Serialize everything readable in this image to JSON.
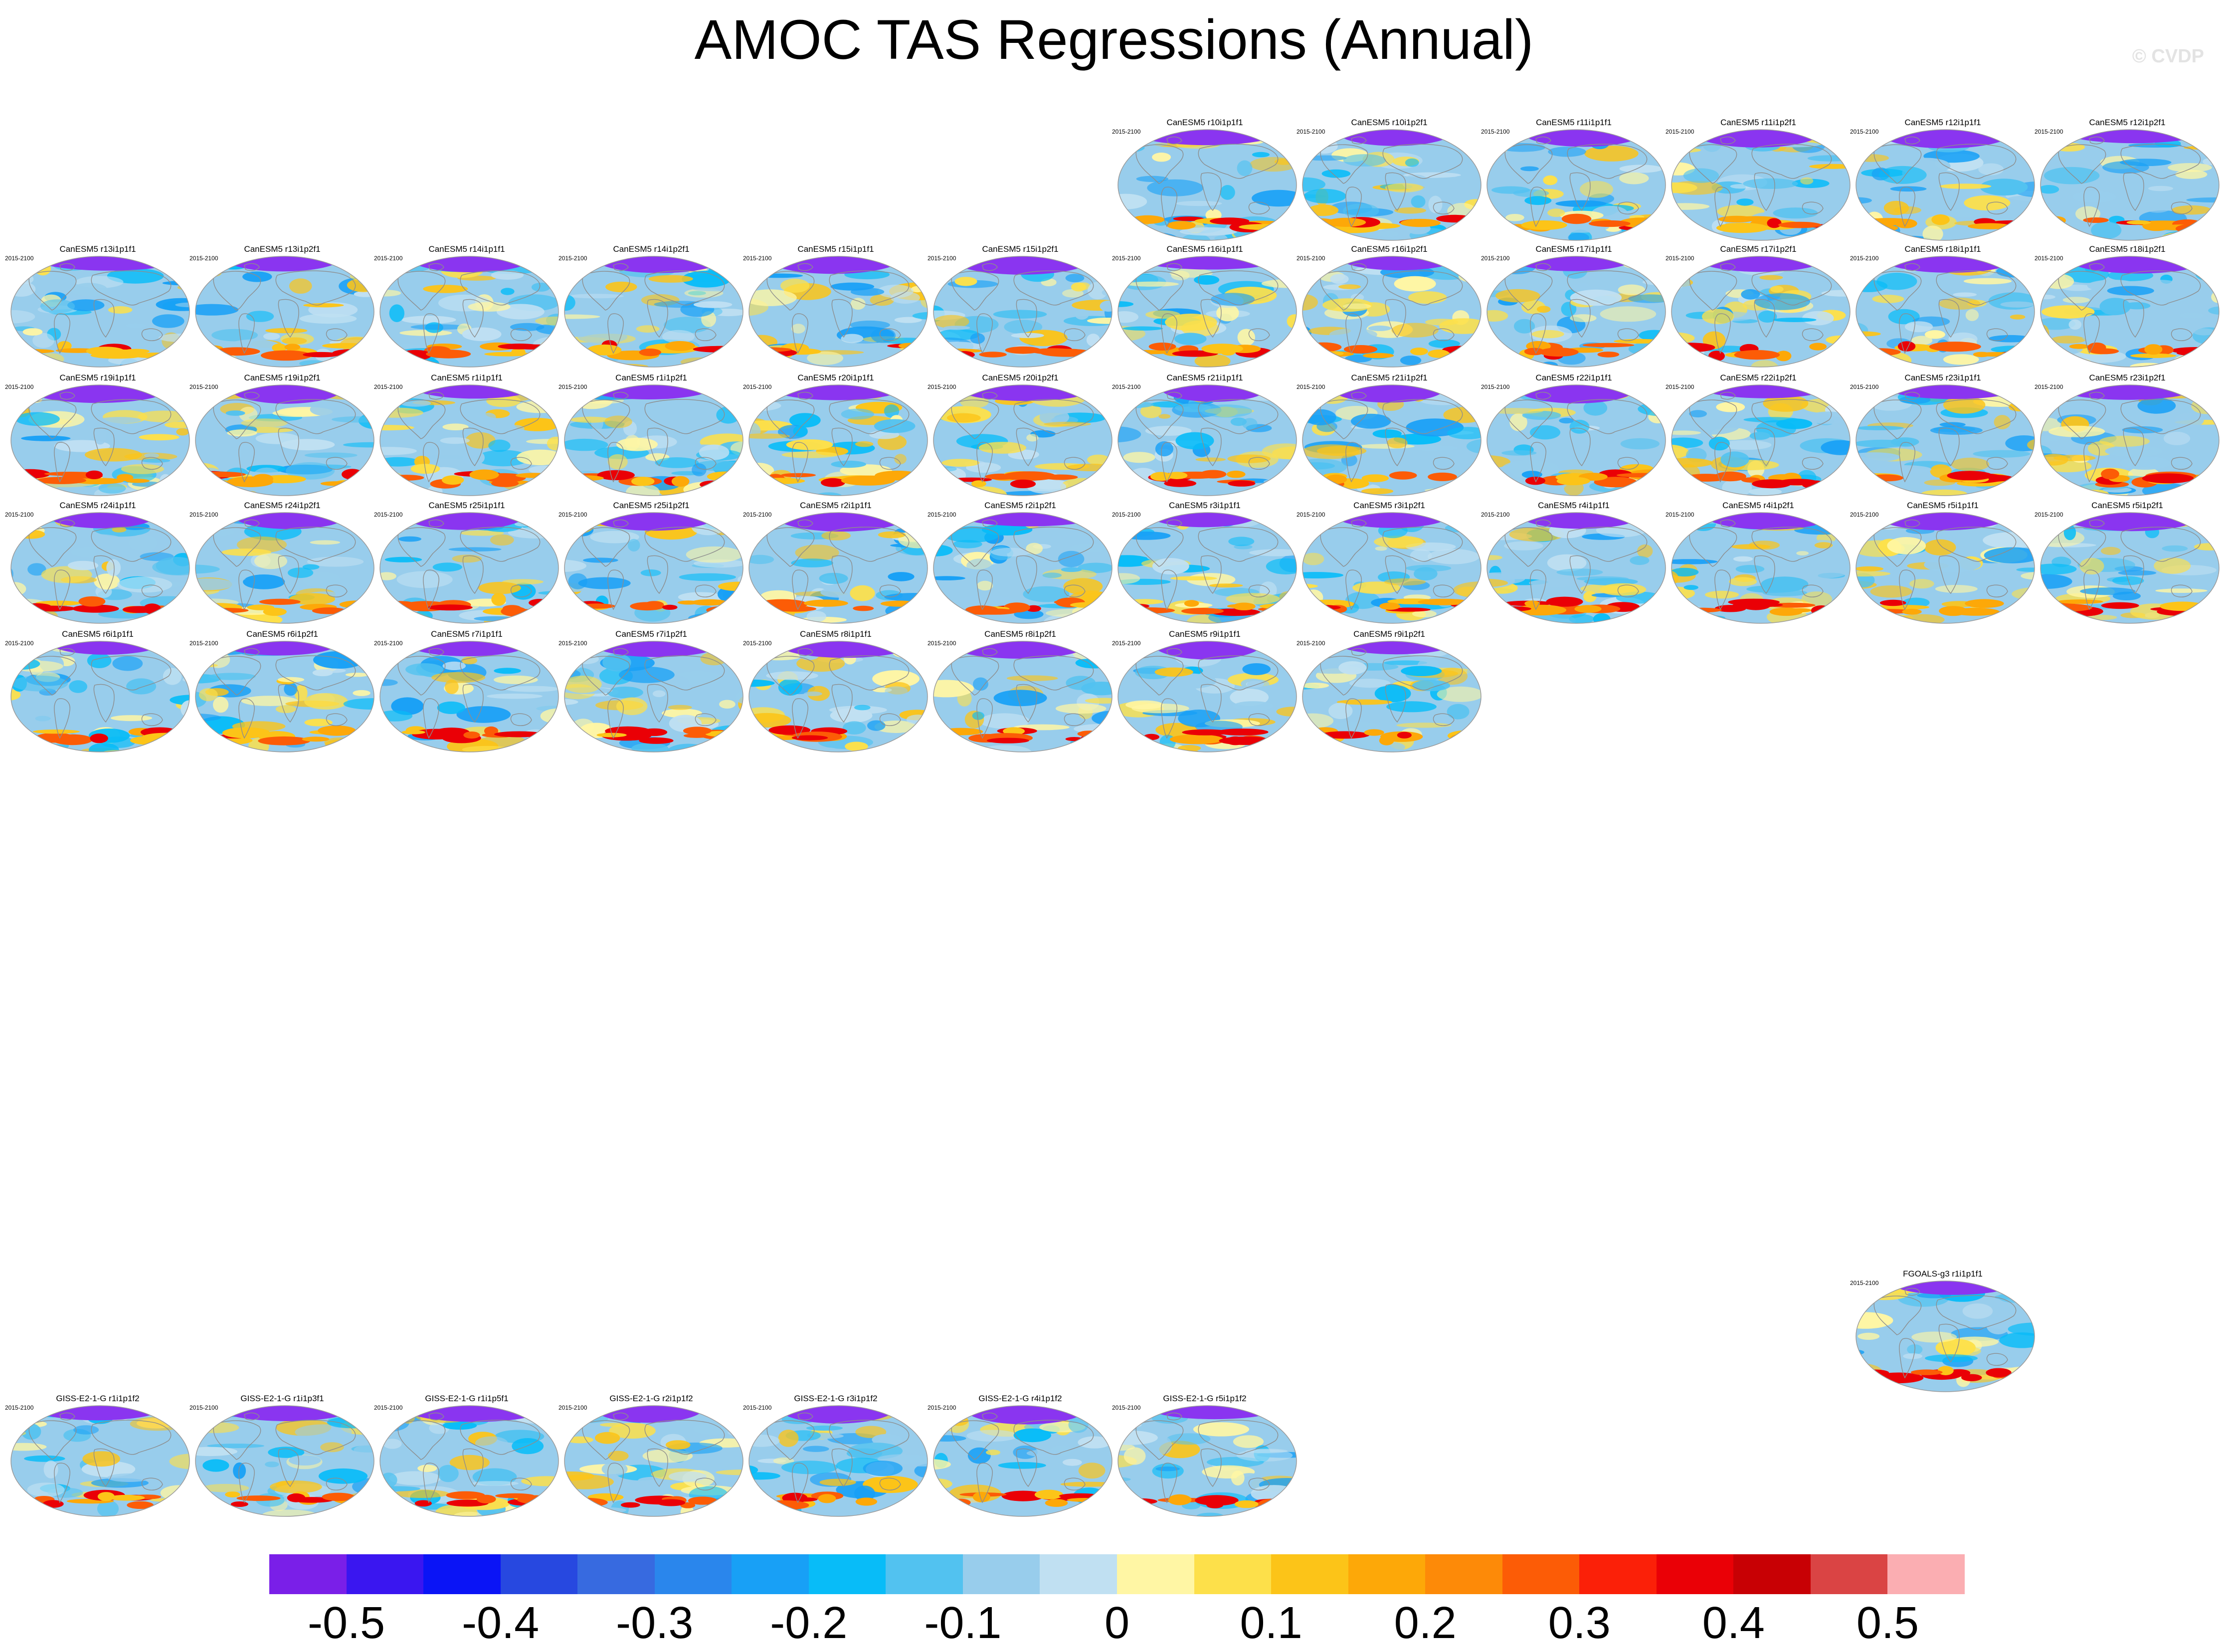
{
  "title": "AMOC TAS Regressions (Annual)",
  "watermark": "© CVDP",
  "period": "2015-2100",
  "panels": [
    {
      "title": "CanESM5 r10i1p1f1",
      "pattern": 1
    },
    {
      "title": "CanESM5 r10i1p2f1",
      "pattern": 2
    },
    {
      "title": "CanESM5 r11i1p1f1",
      "pattern": 3
    },
    {
      "title": "CanESM5 r11i1p2f1",
      "pattern": 4
    },
    {
      "title": "CanESM5 r12i1p1f1",
      "pattern": 5
    },
    {
      "title": "CanESM5 r12i1p2f1",
      "pattern": 6
    },
    {
      "title": "CanESM5 r13i1p1f1",
      "pattern": 7
    },
    {
      "title": "CanESM5 r13i1p2f1",
      "pattern": 8
    },
    {
      "title": "CanESM5 r14i1p1f1",
      "pattern": 9
    },
    {
      "title": "CanESM5 r14i1p2f1",
      "pattern": 10
    },
    {
      "title": "CanESM5 r15i1p1f1",
      "pattern": 11
    },
    {
      "title": "CanESM5 r15i1p2f1",
      "pattern": 12
    },
    {
      "title": "CanESM5 r16i1p1f1",
      "pattern": 13
    },
    {
      "title": "CanESM5 r16i1p2f1",
      "pattern": 14
    },
    {
      "title": "CanESM5 r17i1p1f1",
      "pattern": 15
    },
    {
      "title": "CanESM5 r17i1p2f1",
      "pattern": 16
    },
    {
      "title": "CanESM5 r18i1p1f1",
      "pattern": 17
    },
    {
      "title": "CanESM5 r18i1p2f1",
      "pattern": 18
    },
    {
      "title": "CanESM5 r19i1p1f1",
      "pattern": 19
    },
    {
      "title": "CanESM5 r19i1p2f1",
      "pattern": 20
    },
    {
      "title": "CanESM5 r1i1p1f1",
      "pattern": 21
    },
    {
      "title": "CanESM5 r1i1p2f1",
      "pattern": 22
    },
    {
      "title": "CanESM5 r20i1p1f1",
      "pattern": 23
    },
    {
      "title": "CanESM5 r20i1p2f1",
      "pattern": 24
    },
    {
      "title": "CanESM5 r21i1p1f1",
      "pattern": 25
    },
    {
      "title": "CanESM5 r21i1p2f1",
      "pattern": 26
    },
    {
      "title": "CanESM5 r22i1p1f1",
      "pattern": 27
    },
    {
      "title": "CanESM5 r22i1p2f1",
      "pattern": 28
    },
    {
      "title": "CanESM5 r23i1p1f1",
      "pattern": 29
    },
    {
      "title": "CanESM5 r23i1p2f1",
      "pattern": 30
    },
    {
      "title": "CanESM5 r24i1p1f1",
      "pattern": 31
    },
    {
      "title": "CanESM5 r24i1p2f1",
      "pattern": 32
    },
    {
      "title": "CanESM5 r25i1p1f1",
      "pattern": 33
    },
    {
      "title": "CanESM5 r25i1p2f1",
      "pattern": 34
    },
    {
      "title": "CanESM5 r2i1p1f1",
      "pattern": 35
    },
    {
      "title": "CanESM5 r2i1p2f1",
      "pattern": 36
    },
    {
      "title": "CanESM5 r3i1p1f1",
      "pattern": 37
    },
    {
      "title": "CanESM5 r3i1p2f1",
      "pattern": 38
    },
    {
      "title": "CanESM5 r4i1p1f1",
      "pattern": 39
    },
    {
      "title": "CanESM5 r4i1p2f1",
      "pattern": 40
    },
    {
      "title": "CanESM5 r5i1p1f1",
      "pattern": 41
    },
    {
      "title": "CanESM5 r5i1p2f1",
      "pattern": 42
    },
    {
      "title": "CanESM5 r6i1p1f1",
      "pattern": 43
    },
    {
      "title": "CanESM5 r6i1p2f1",
      "pattern": 44
    },
    {
      "title": "CanESM5 r7i1p1f1",
      "pattern": 45
    },
    {
      "title": "CanESM5 r7i1p2f1",
      "pattern": 46
    },
    {
      "title": "CanESM5 r8i1p1f1",
      "pattern": 47
    },
    {
      "title": "CanESM5 r8i1p2f1",
      "pattern": 48
    },
    {
      "title": "CanESM5 r9i1p1f1",
      "pattern": 49
    },
    {
      "title": "CanESM5 r9i1p2f1",
      "pattern": 50
    },
    {
      "title": "FGOALS-g3 r1i1p1f1",
      "pattern": 51
    },
    {
      "title": "GISS-E2-1-G r1i1p1f2",
      "pattern": 52
    },
    {
      "title": "GISS-E2-1-G r1i1p3f1",
      "pattern": 53
    },
    {
      "title": "GISS-E2-1-G r1i1p5f1",
      "pattern": 54
    },
    {
      "title": "GISS-E2-1-G r2i1p1f2",
      "pattern": 55
    },
    {
      "title": "GISS-E2-1-G r3i1p1f2",
      "pattern": 56
    },
    {
      "title": "GISS-E2-1-G r4i1p1f2",
      "pattern": 57
    },
    {
      "title": "GISS-E2-1-G r5i1p1f2",
      "pattern": 58
    }
  ],
  "colorbar": {
    "colors": [
      "#7a1fe8",
      "#3a16f0",
      "#0a14f6",
      "#2748e0",
      "#376ae0",
      "#2a86ec",
      "#18a0f6",
      "#08bcf8",
      "#52c2f0",
      "#98cdec",
      "#c0e0f2",
      "#fff6a4",
      "#fde04a",
      "#fcc418",
      "#fda808",
      "#fd8a08",
      "#fc5c06",
      "#fb2008",
      "#ea0006",
      "#c80004",
      "#da4444",
      "#fbaeb2"
    ],
    "labels": [
      "-0.5",
      "-0.4",
      "-0.3",
      "-0.2",
      "-0.1",
      "0",
      "0.1",
      "0.2",
      "0.3",
      "0.4",
      "0.5"
    ]
  },
  "map_style": {
    "ocean": "#98cdec",
    "arctic": "#8a35f0",
    "coast": "#8d8d8d",
    "border": "#9a9a9a"
  }
}
